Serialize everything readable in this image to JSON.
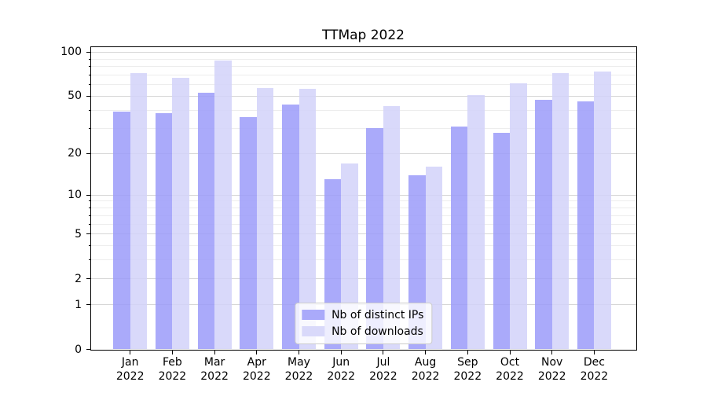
{
  "title": "TTMap 2022",
  "chart_data": {
    "type": "bar",
    "title": "TTMap 2022",
    "categories": [
      "Jan",
      "Feb",
      "Mar",
      "Apr",
      "May",
      "Jun",
      "Jul",
      "Aug",
      "Sep",
      "Oct",
      "Nov",
      "Dec"
    ],
    "year": "2022",
    "series": [
      {
        "name": "Nb of distinct IPs",
        "color": "#9b9bf9",
        "values": [
          39,
          38,
          53,
          36,
          44,
          13,
          30,
          14,
          31,
          28,
          47,
          46
        ]
      },
      {
        "name": "Nb of downloads",
        "color": "#d2d2f9",
        "values": [
          72,
          67,
          88,
          57,
          56,
          17,
          43,
          16,
          51,
          61,
          72,
          74
        ]
      }
    ],
    "bar_alpha": 0.85,
    "yscale": "log1p",
    "ylim": [
      0,
      110
    ],
    "y_major_ticks": [
      0,
      1,
      2,
      5,
      10,
      20,
      50,
      100
    ],
    "y_minor_gridlines": [
      3,
      4,
      6,
      7,
      8,
      9,
      30,
      40,
      60,
      70,
      80,
      90
    ],
    "grid": true,
    "legend_position": "lower center"
  },
  "colors": {
    "background": "#ffffff",
    "spine": "#000000",
    "grid_major": "#d6d6d6",
    "grid_minor": "#ededed",
    "text": "#000000",
    "bar_ips_solid": "#aaaafa",
    "bar_downloads_solid": "#d9d9fa",
    "legend_border": "#cccccc"
  }
}
